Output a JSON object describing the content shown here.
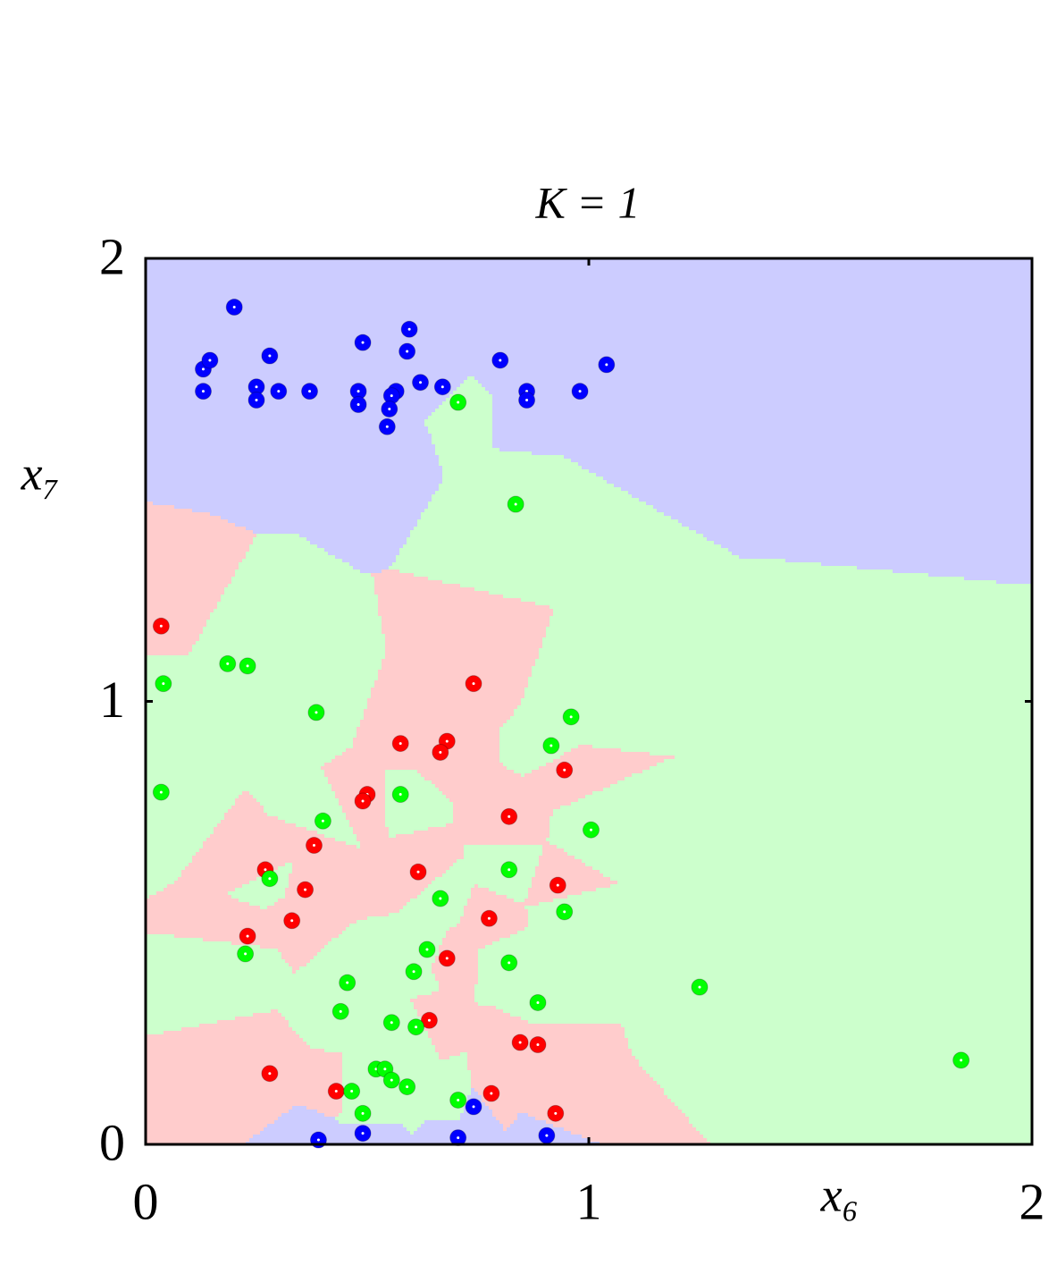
{
  "chart_data": {
    "type": "scatter",
    "title": "K = 1",
    "xlabel": "x₆",
    "ylabel": "x₇",
    "xlim": [
      0,
      2
    ],
    "ylim": [
      0,
      2
    ],
    "xticks": [
      0,
      1,
      2
    ],
    "yticks": [
      0,
      1,
      2
    ],
    "series": [
      {
        "color": "#0000ff",
        "region_color": "#ccccff",
        "x": [
          0.2,
          0.13,
          0.145,
          0.13,
          0.28,
          0.25,
          0.25,
          0.3,
          0.37,
          0.49,
          0.48,
          0.48,
          0.595,
          0.59,
          0.565,
          0.555,
          0.55,
          0.545,
          0.62,
          0.67,
          0.8,
          0.86,
          0.86,
          0.98,
          1.04,
          0.74,
          0.39,
          0.49,
          0.705,
          0.905
        ],
        "values": [
          1.89,
          1.75,
          1.77,
          1.7,
          1.78,
          1.71,
          1.68,
          1.7,
          1.7,
          1.81,
          1.7,
          1.67,
          1.84,
          1.79,
          1.7,
          1.69,
          1.66,
          1.62,
          1.72,
          1.71,
          1.77,
          1.7,
          1.68,
          1.7,
          1.76,
          0.085,
          0.01,
          0.025,
          0.015,
          0.02
        ]
      },
      {
        "color": "#ff0000",
        "region_color": "#ffcccc",
        "x": [
          0.035,
          0.74,
          0.575,
          0.68,
          0.665,
          0.945,
          0.5,
          0.49,
          0.82,
          0.38,
          0.27,
          0.615,
          0.36,
          0.93,
          0.33,
          0.775,
          0.23,
          0.68,
          0.64,
          0.845,
          0.885,
          0.28,
          0.43,
          0.78,
          0.925
        ],
        "values": [
          1.17,
          1.04,
          0.905,
          0.91,
          0.885,
          0.845,
          0.79,
          0.775,
          0.74,
          0.675,
          0.62,
          0.615,
          0.575,
          0.585,
          0.505,
          0.51,
          0.47,
          0.42,
          0.28,
          0.23,
          0.225,
          0.16,
          0.12,
          0.115,
          0.07
        ]
      },
      {
        "color": "#00ff00",
        "region_color": "#ccffcc",
        "x": [
          0.705,
          0.835,
          0.185,
          0.23,
          0.04,
          0.385,
          0.96,
          0.915,
          0.035,
          0.575,
          0.4,
          1.005,
          0.82,
          0.28,
          0.665,
          0.945,
          0.635,
          0.82,
          0.605,
          0.455,
          0.225,
          1.25,
          0.885,
          0.44,
          0.555,
          0.61,
          1.84,
          0.52,
          0.54,
          0.555,
          0.59,
          0.465,
          0.705,
          0.49
        ],
        "values": [
          1.675,
          1.445,
          1.085,
          1.08,
          1.04,
          0.975,
          0.965,
          0.9,
          0.795,
          0.79,
          0.73,
          0.71,
          0.62,
          0.6,
          0.555,
          0.525,
          0.44,
          0.41,
          0.39,
          0.365,
          0.43,
          0.355,
          0.32,
          0.3,
          0.275,
          0.265,
          0.19,
          0.17,
          0.17,
          0.145,
          0.13,
          0.12,
          0.1,
          0.07
        ]
      }
    ]
  }
}
